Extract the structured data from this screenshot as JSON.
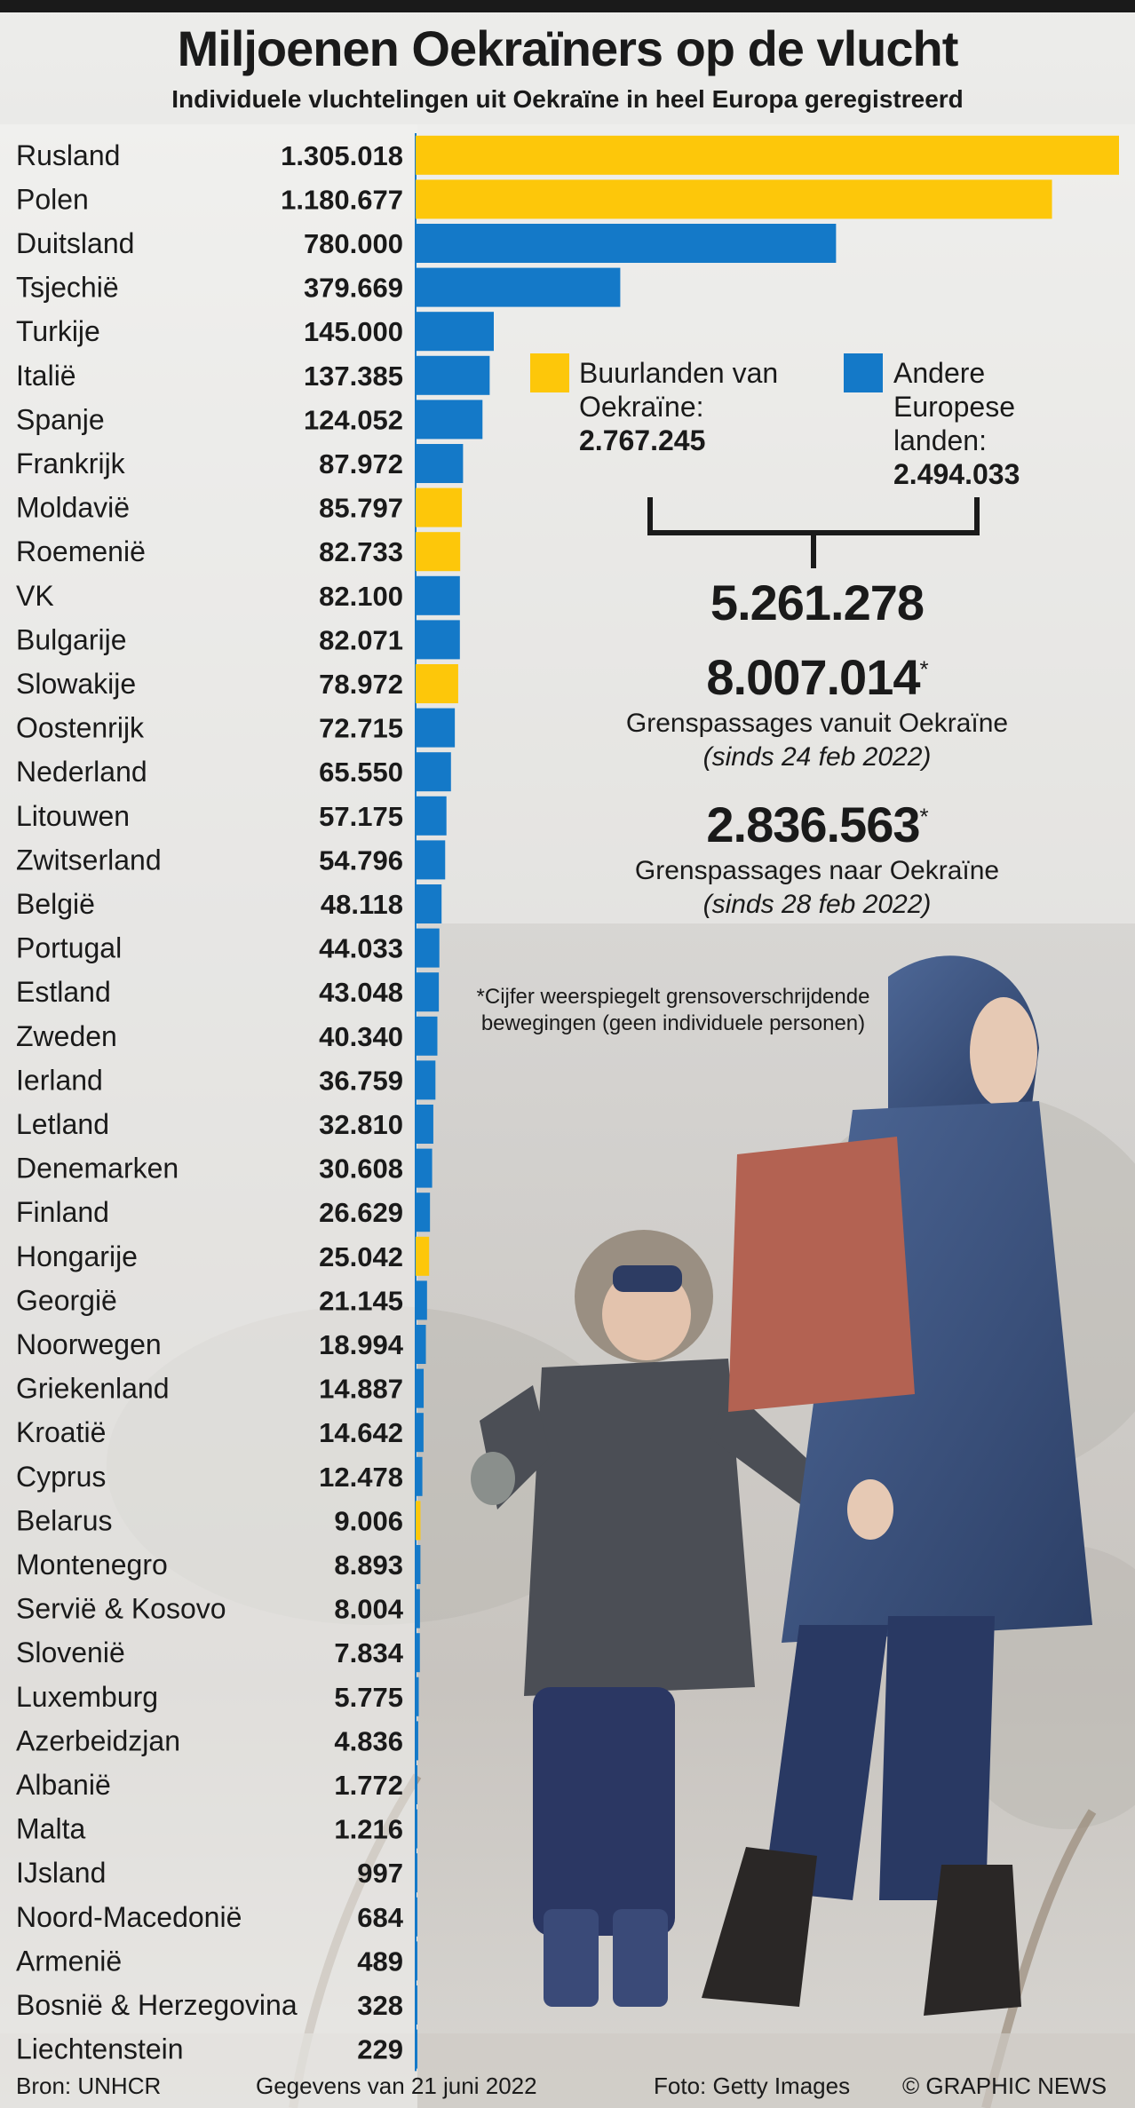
{
  "title": "Miljoenen Oekraïners op de vlucht",
  "subtitle": "Individuele vluchtelingen uit Oekraïne in heel Europa geregistreerd",
  "colors": {
    "neighbour": "#fdc70a",
    "other": "#1479c8"
  },
  "legend": {
    "neighbour_label": "Buurlanden van Oekraïne:",
    "neighbour_value": "2.767.245",
    "other_label": "Andere Europese landen:",
    "other_value": "2.494.033"
  },
  "total": "5.261.278",
  "crossings_out": {
    "value": "8.007.014",
    "star": "*",
    "label": "Grenspassages vanuit Oekraïne",
    "since": "(sinds 24 feb 2022)"
  },
  "crossings_in": {
    "value": "2.836.563",
    "star": "*",
    "label": "Grenspassages naar Oekraïne",
    "since": "(sinds 28 feb 2022)"
  },
  "note": "*Cijfer weerspiegelt grensoverschrijdende bewegingen (geen individuele personen)",
  "footer": {
    "source": "Bron: UNHCR",
    "date": "Gegevens van 21 juni 2022",
    "photo": "Foto: Getty Images",
    "copyright": "© GRAPHIC NEWS"
  },
  "chart_data": {
    "type": "bar",
    "orientation": "horizontal",
    "title": "Miljoenen Oekraïners op de vlucht",
    "subtitle": "Individuele vluchtelingen uit Oekraïne in heel Europa geregistreerd",
    "series_legend": [
      "Buurlanden van Oekraïne",
      "Andere Europese landen"
    ],
    "rows": [
      {
        "country": "Rusland",
        "label": "1.305.018",
        "value": 1305018,
        "group": "neighbour"
      },
      {
        "country": "Polen",
        "label": "1.180.677",
        "value": 1180677,
        "group": "neighbour"
      },
      {
        "country": "Duitsland",
        "label": "780.000",
        "value": 780000,
        "group": "other"
      },
      {
        "country": "Tsjechië",
        "label": "379.669",
        "value": 379669,
        "group": "other"
      },
      {
        "country": "Turkije",
        "label": "145.000",
        "value": 145000,
        "group": "other"
      },
      {
        "country": "Italië",
        "label": "137.385",
        "value": 137385,
        "group": "other"
      },
      {
        "country": "Spanje",
        "label": "124.052",
        "value": 124052,
        "group": "other"
      },
      {
        "country": "Frankrijk",
        "label": "87.972",
        "value": 87972,
        "group": "other"
      },
      {
        "country": "Moldavië",
        "label": "85.797",
        "value": 85797,
        "group": "neighbour"
      },
      {
        "country": "Roemenië",
        "label": "82.733",
        "value": 82733,
        "group": "neighbour"
      },
      {
        "country": "VK",
        "label": "82.100",
        "value": 82100,
        "group": "other"
      },
      {
        "country": "Bulgarije",
        "label": "82.071",
        "value": 82071,
        "group": "other"
      },
      {
        "country": "Slowakije",
        "label": "78.972",
        "value": 78972,
        "group": "neighbour"
      },
      {
        "country": "Oostenrijk",
        "label": "72.715",
        "value": 72715,
        "group": "other"
      },
      {
        "country": "Nederland",
        "label": "65.550",
        "value": 65550,
        "group": "other"
      },
      {
        "country": "Litouwen",
        "label": "57.175",
        "value": 57175,
        "group": "other"
      },
      {
        "country": "Zwitserland",
        "label": "54.796",
        "value": 54796,
        "group": "other"
      },
      {
        "country": "België",
        "label": "48.118",
        "value": 48118,
        "group": "other"
      },
      {
        "country": "Portugal",
        "label": "44.033",
        "value": 44033,
        "group": "other"
      },
      {
        "country": "Estland",
        "label": "43.048",
        "value": 43048,
        "group": "other"
      },
      {
        "country": "Zweden",
        "label": "40.340",
        "value": 40340,
        "group": "other"
      },
      {
        "country": "Ierland",
        "label": "36.759",
        "value": 36759,
        "group": "other"
      },
      {
        "country": "Letland",
        "label": "32.810",
        "value": 32810,
        "group": "other"
      },
      {
        "country": "Denemarken",
        "label": "30.608",
        "value": 30608,
        "group": "other"
      },
      {
        "country": "Finland",
        "label": "26.629",
        "value": 26629,
        "group": "other"
      },
      {
        "country": "Hongarije",
        "label": "25.042",
        "value": 25042,
        "group": "neighbour"
      },
      {
        "country": "Georgië",
        "label": "21.145",
        "value": 21145,
        "group": "other"
      },
      {
        "country": "Noorwegen",
        "label": "18.994",
        "value": 18994,
        "group": "other"
      },
      {
        "country": "Griekenland",
        "label": "14.887",
        "value": 14887,
        "group": "other"
      },
      {
        "country": "Kroatië",
        "label": "14.642",
        "value": 14642,
        "group": "other"
      },
      {
        "country": "Cyprus",
        "label": "12.478",
        "value": 12478,
        "group": "other"
      },
      {
        "country": "Belarus",
        "label": "9.006",
        "value": 9006,
        "group": "neighbour"
      },
      {
        "country": "Montenegro",
        "label": "8.893",
        "value": 8893,
        "group": "other"
      },
      {
        "country": "Servië & Kosovo",
        "label": "8.004",
        "value": 8004,
        "group": "other"
      },
      {
        "country": "Slovenië",
        "label": "7.834",
        "value": 7834,
        "group": "other"
      },
      {
        "country": "Luxemburg",
        "label": "5.775",
        "value": 5775,
        "group": "other"
      },
      {
        "country": "Azerbeidzjan",
        "label": "4.836",
        "value": 4836,
        "group": "other"
      },
      {
        "country": "Albanië",
        "label": "1.772",
        "value": 1772,
        "group": "other"
      },
      {
        "country": "Malta",
        "label": "1.216",
        "value": 1216,
        "group": "other"
      },
      {
        "country": "IJsland",
        "label": "997",
        "value": 997,
        "group": "other"
      },
      {
        "country": "Noord-Macedonië",
        "label": "684",
        "value": 684,
        "group": "other"
      },
      {
        "country": "Armenië",
        "label": "489",
        "value": 489,
        "group": "other"
      },
      {
        "country": "Bosnië & Herzegovina",
        "label": "328",
        "value": 328,
        "group": "other"
      },
      {
        "country": "Liechtenstein",
        "label": "229",
        "value": 229,
        "group": "other"
      }
    ],
    "xlim": [
      0,
      1305018
    ],
    "grid": false
  }
}
